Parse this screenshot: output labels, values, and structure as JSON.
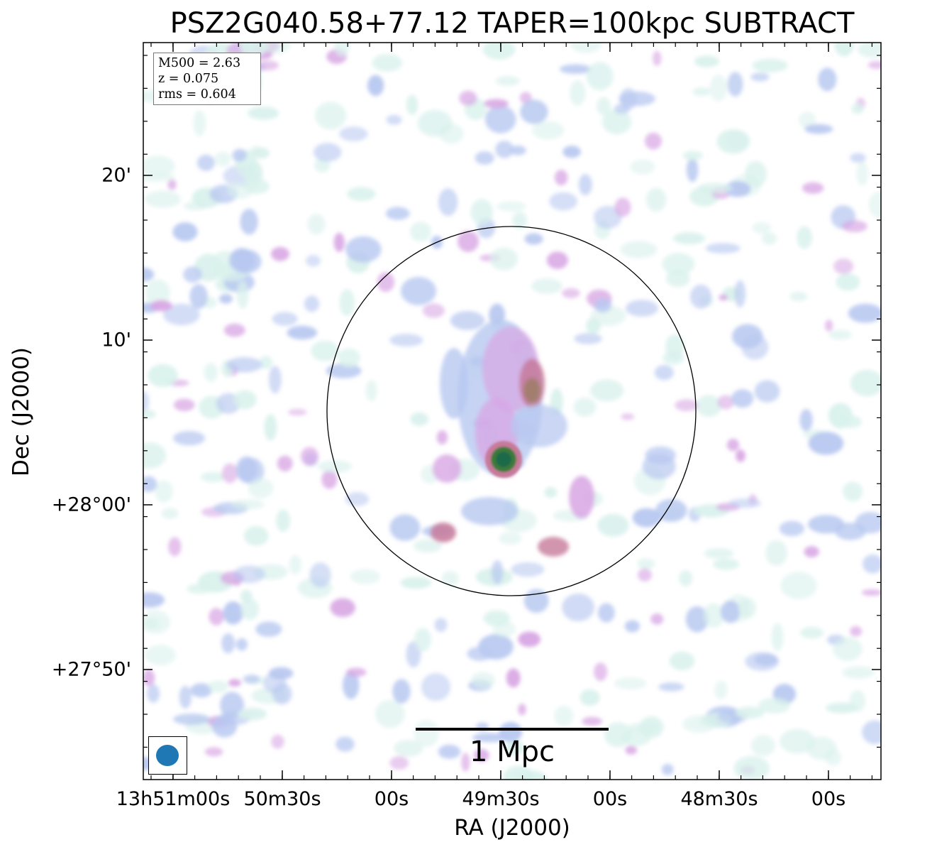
{
  "chart_data": {
    "type": "heatmap",
    "title": "PSZ2G040.58+77.12 TAPER=100kpc SUBTRACT",
    "xlabel": "RA (J2000)",
    "ylabel": "Dec (J2000)",
    "x_tick_labels": [
      "13h51m00s",
      "50m30s",
      "00s",
      "49m30s",
      "00s",
      "48m30s",
      "00s"
    ],
    "y_tick_labels": [
      "20'",
      "10'",
      "+28°00'",
      "+27°50'"
    ],
    "info": [
      "M500 = 2.63",
      "z = 0.075",
      "rms = 0.604"
    ],
    "scale_bar_label": "1 Mpc",
    "grid": false,
    "colors": {
      "faint": "#d9f1ec",
      "low": "#b8c8f0",
      "mid": "#d8a6e4",
      "high": "#c77a9a",
      "peak": "#1e6b4a",
      "beam": "#1f77b4"
    }
  }
}
